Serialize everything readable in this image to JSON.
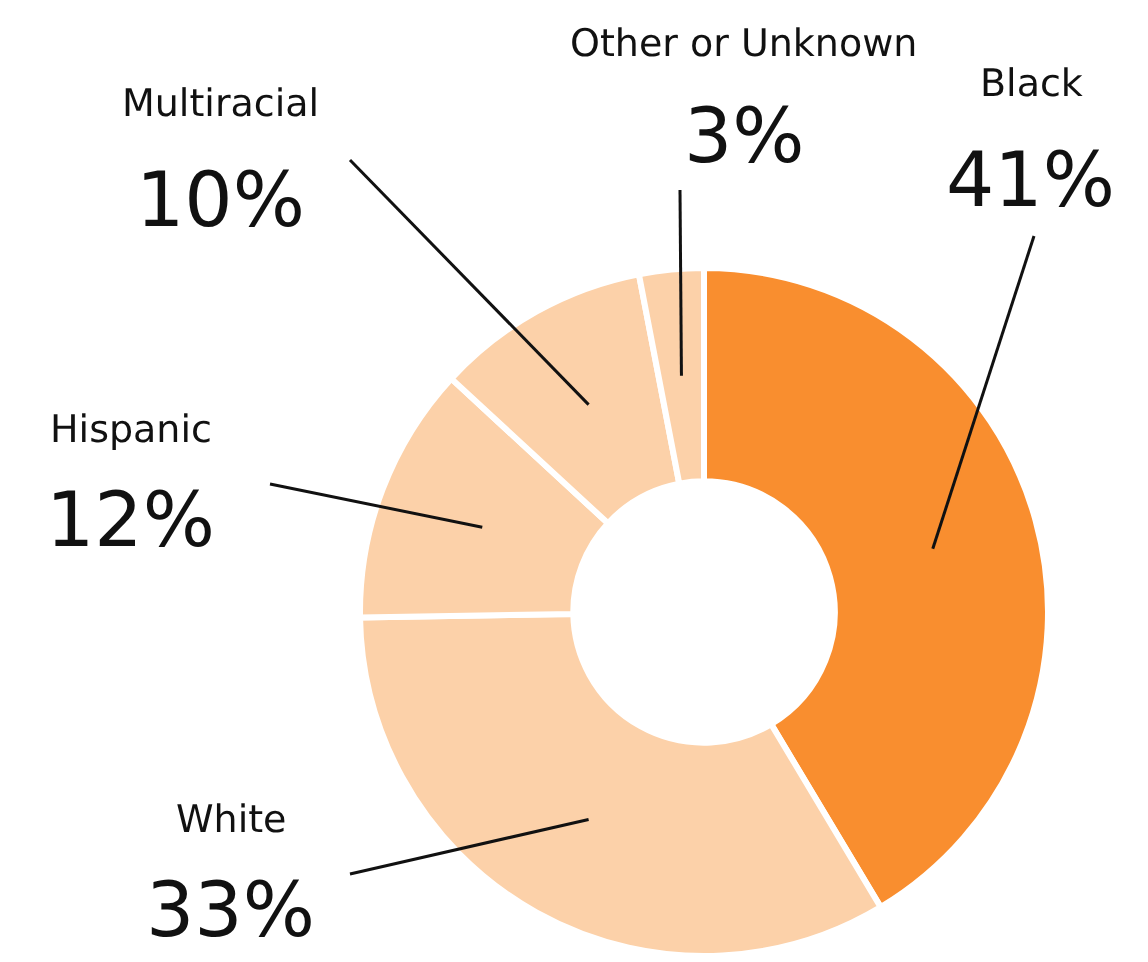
{
  "chart_data": {
    "type": "donut",
    "categories": [
      "Black",
      "White",
      "Hispanic",
      "Multiracial",
      "Other or Unknown"
    ],
    "values": [
      41,
      33,
      12,
      10,
      3
    ],
    "colors": [
      "#f98e2f",
      "#fcd1a9",
      "#fcd1a9",
      "#fcd1a9",
      "#fcd1a9"
    ],
    "value_labels": [
      "41%",
      "33%",
      "12%",
      "10%",
      "3%"
    ],
    "legend": false
  }
}
